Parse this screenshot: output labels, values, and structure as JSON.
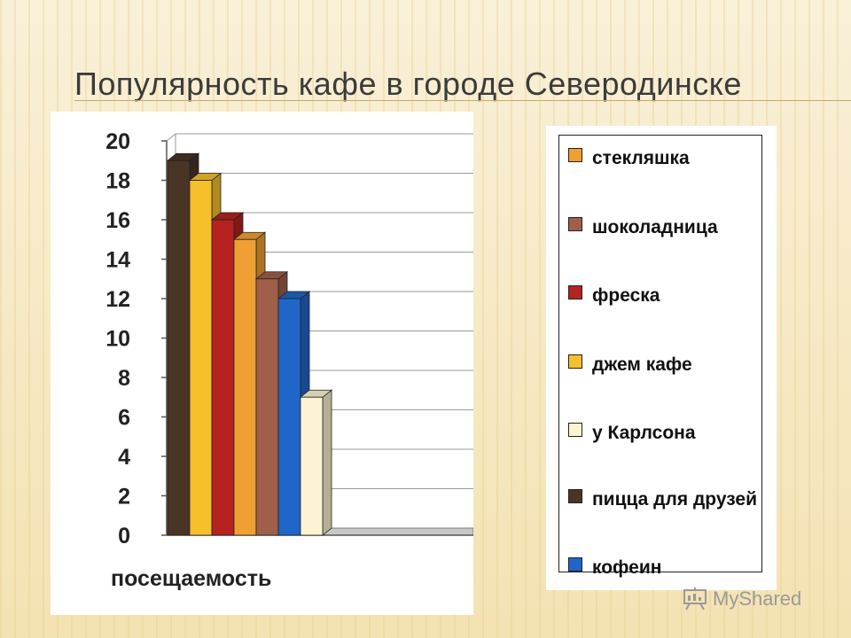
{
  "slide": {
    "title": "Популярность кафе в городе Северодинске"
  },
  "chart_data": {
    "type": "bar",
    "x_category": "посещаемость",
    "ylim": [
      0,
      20
    ],
    "y_ticks": [
      "0",
      "2",
      "4",
      "6",
      "8",
      "10",
      "12",
      "14",
      "16",
      "18",
      "20"
    ],
    "grid": true,
    "legend_placement": "right",
    "series": [
      {
        "name": "пицца для друзей",
        "value": 19,
        "color": "#4a3426"
      },
      {
        "name": "джем кафе",
        "value": 18,
        "color": "#f6c02c"
      },
      {
        "name": "фреска",
        "value": 16,
        "color": "#b5221f"
      },
      {
        "name": "стекляшка",
        "value": 15,
        "color": "#f0a032"
      },
      {
        "name": "шоколадница",
        "value": 13,
        "color": "#a05f49"
      },
      {
        "name": "кофеин",
        "value": 12,
        "color": "#1f66c8"
      },
      {
        "name": "у Карлсона",
        "value": 7,
        "color": "#fdf3d2"
      }
    ]
  },
  "legend": {
    "items": [
      {
        "label": "стекляшка",
        "color": "#f0a032"
      },
      {
        "label": "шоколадница",
        "color": "#a05f49"
      },
      {
        "label": "фреска",
        "color": "#b5221f"
      },
      {
        "label": "джем кафе",
        "color": "#f6c02c"
      },
      {
        "label": "у Карлсона",
        "color": "#fdf3d2"
      },
      {
        "label": "пицца для друзей",
        "color": "#4a3426"
      },
      {
        "label": "кофеин",
        "color": "#1f66c8"
      }
    ]
  },
  "watermark": {
    "text": "MyShared"
  }
}
